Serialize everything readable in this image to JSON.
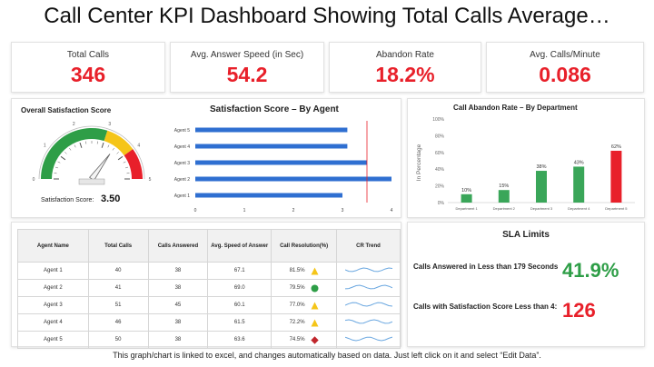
{
  "page_title": "Call Center KPI Dashboard Showing Total Calls Average…",
  "kpis": [
    {
      "label": "Total Calls",
      "value": "346"
    },
    {
      "label": "Avg. Answer Speed (in Sec)",
      "value": "54.2"
    },
    {
      "label": "Abandon Rate",
      "value": "18.2%"
    },
    {
      "label": "Avg. Calls/Minute",
      "value": "0.086"
    }
  ],
  "satisfaction": {
    "title": "Overall Satisfaction Score",
    "score_label": "Satisfaction Score:",
    "score_value": "3.50",
    "gauge_labels": [
      "0",
      "1",
      "2",
      "3",
      "4",
      "5"
    ],
    "gauge_value": 3.5,
    "gauge_max": 5,
    "colors": {
      "red": "#e8202a",
      "yellow": "#f5c518",
      "green": "#2e9e47"
    }
  },
  "agent_chart": {
    "title": "Satisfaction Score – By Agent",
    "chart_data": {
      "type": "bar",
      "orientation": "horizontal",
      "categories": [
        "Agent 5",
        "Agent 4",
        "Agent 3",
        "Agent 2",
        "Agent 1"
      ],
      "values": [
        3.1,
        3.1,
        3.5,
        4.0,
        3.0
      ],
      "xlim": [
        0,
        4
      ],
      "ticks": [
        "0",
        "1",
        "2",
        "3",
        "4"
      ],
      "target": 3.5,
      "color": "#2f6fd1",
      "target_color": "#e8202a"
    }
  },
  "abandon_chart": {
    "title": "Call Abandon Rate – By Department",
    "chart_data": {
      "type": "bar",
      "categories": [
        "Department 1",
        "Department 2",
        "Department 3",
        "Department 4",
        "Department 5"
      ],
      "values": [
        10,
        15,
        38,
        43,
        62
      ],
      "labels": [
        "10%",
        "15%",
        "38%",
        "43%",
        "62%"
      ],
      "ylim": [
        0,
        100
      ],
      "yticks": [
        "0%",
        "20%",
        "40%",
        "60%",
        "80%",
        "100%"
      ],
      "ylabel": "In Percentage",
      "colors": [
        "#3aa659",
        "#3aa659",
        "#3aa659",
        "#3aa659",
        "#e8202a"
      ]
    }
  },
  "table": {
    "headers": [
      "Agent Name",
      "Total Calls",
      "Calls Answered",
      "Avg. Speed of Answer",
      "Call Resolution(%)",
      "CR Trend"
    ],
    "rows": [
      {
        "agent": "Agent 1",
        "total": "40",
        "answered": "38",
        "speed": "67.1",
        "resolution": "81.5%",
        "status": "triangle"
      },
      {
        "agent": "Agent 2",
        "total": "41",
        "answered": "38",
        "speed": "69.0",
        "resolution": "79.5%",
        "status": "circle"
      },
      {
        "agent": "Agent 3",
        "total": "51",
        "answered": "45",
        "speed": "60.1",
        "resolution": "77.0%",
        "status": "triangle"
      },
      {
        "agent": "Agent 4",
        "total": "46",
        "answered": "38",
        "speed": "61.5",
        "resolution": "72.2%",
        "status": "triangle"
      },
      {
        "agent": "Agent 5",
        "total": "50",
        "answered": "38",
        "speed": "63.6",
        "resolution": "74.5%",
        "status": "diamond"
      }
    ],
    "status_colors": {
      "triangle": "#f5c518",
      "circle": "#2e9e47",
      "diamond": "#c0262c"
    },
    "trend_color": "#6aa7e0"
  },
  "sla": {
    "title": "SLA Limits",
    "items": [
      {
        "text": "Calls Answered in Less than 179 Seconds",
        "value": "41.9%",
        "color": "#2e9e47"
      },
      {
        "text": "Calls with Satisfaction Score Less than 4:",
        "value": "126",
        "color": "#e8202a"
      }
    ]
  },
  "footer": "This graph/chart is linked to excel, and changes automatically based on data. Just left click on it and select “Edit Data”."
}
